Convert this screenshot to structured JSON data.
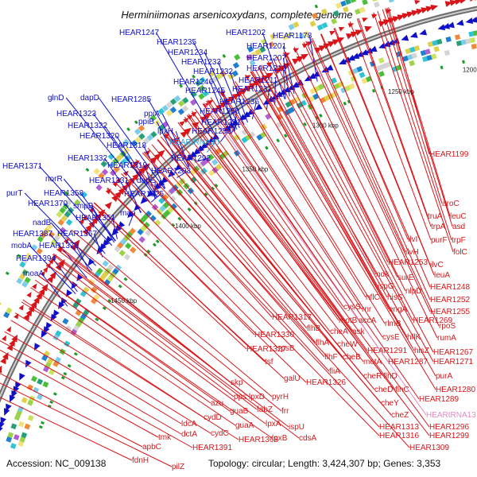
{
  "title": "Herminiimonas arsenicoxydans, complete genome",
  "footer": {
    "accession": "Accession: NC_009138",
    "summary": "Topology: circular; Length: 3,424,307 bp; Genes: 3,353"
  },
  "ticks": [
    "1200 kbp",
    "1250 kbp",
    "1300 kbp",
    "1350 kbp",
    "1400 kbp",
    "1450 kbp"
  ],
  "colors": {
    "forward": "#1010c8",
    "reverse": "#d8161a",
    "rna": "#2aa6e0",
    "rna_reverse": "#e38bc0",
    "backbone": "#8a8a8a"
  },
  "forward_labels": [
    "HEAR1247",
    "HEAR1202",
    "HEAR1178",
    "HEAR1235",
    "HEAR1201",
    "HEAR1234",
    "HEAR1207",
    "HEAR1233",
    "HEAR1210",
    "HEAR1232",
    "HEAR1211",
    "HEAR1246",
    "HEAR1231",
    "HEAR1245",
    "glnD",
    "dapD",
    "HEAR1285",
    "HEAR1236",
    "HEAR1323",
    "ppiA",
    "HEAR1250",
    "HEAR1322",
    "ppiB",
    "HEAR1251",
    "HEAR1320",
    "lpxH",
    "HEAR1259",
    "HEAR1318",
    "HEARtRNA40",
    "HEAR1332",
    "HEAR1292",
    "HEAR1371",
    "HEAR1319",
    "HEAR1293",
    "norR",
    "HEAR1331",
    "dapE",
    "purT",
    "HEAR1358",
    "smpB",
    "HEAR1325",
    "HEAR1370",
    "map",
    "HEAR1351",
    "nadB",
    "HEAR1387",
    "HEAR1367",
    "mobA",
    "HEAR1378",
    "HEAR1394",
    "moaA"
  ],
  "reverse_labels": [
    "HEAR1199",
    "aroC",
    "truA",
    "leuC",
    "trpA",
    "asd",
    "ilvI",
    "purF",
    "trpF",
    "ilvH",
    "folC",
    "HEAR1253",
    "ilvC",
    "ndk",
    "surE",
    "leuA",
    "ispG",
    "nlpD",
    "HEAR1248",
    "hflC",
    "hisS",
    "HEAR1252",
    "cysS",
    "rnr",
    "engA",
    "HEAR1255",
    "HEAR1317",
    "motB",
    "accA",
    "rlmB",
    "HEAR1269",
    "flhB",
    "cheA",
    "ask",
    "rpoS",
    "HEAR1330",
    "flhA",
    "cheW",
    "cysE",
    "hflK",
    "rumA",
    "HEAR1327",
    "flhF",
    "cheB",
    "HEAR1291",
    "hisZ",
    "HEAR1267",
    "rpsB",
    "motA",
    "HEAR1287",
    "HEAR1271",
    "tsf",
    "fliA",
    "cheR",
    "flhD",
    "purA",
    "galU",
    "HEAR1326",
    "cheD",
    "flhC",
    "HEAR1280",
    "skp",
    "cheY",
    "HEAR1289",
    "pyrH",
    "lpxD",
    "cheZ",
    "HEARtRNA13",
    "azu",
    "pps",
    "fabZ",
    "frr",
    "HEAR1313",
    "HEAR1296",
    "cydD",
    "guaB",
    "lpxA",
    "ispU",
    "HEAR1316",
    "HEAR1299",
    "ldcA",
    "cydC",
    "guaA",
    "HEAR1368",
    "lpxB",
    "cdsA",
    "HEAR1309",
    "dctA",
    "HEAR1391",
    "tmk",
    "apbC",
    "fdnH",
    "pilZ"
  ]
}
